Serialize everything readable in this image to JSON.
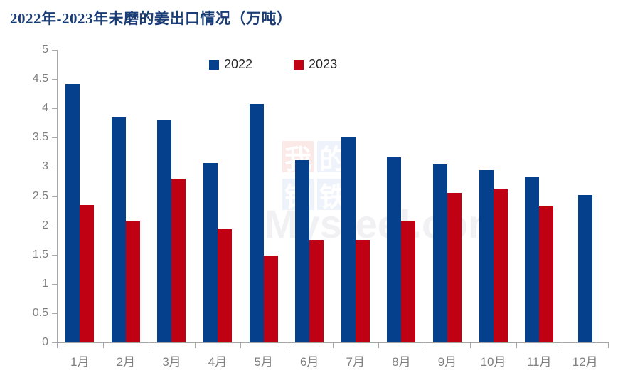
{
  "title": "2022年-2023年未磨的姜出口情况（万吨）",
  "legend": {
    "items": [
      {
        "label": "2022",
        "color": "#05408c"
      },
      {
        "label": "2023",
        "color": "#c00114"
      }
    ]
  },
  "watermark": {
    "squares": [
      {
        "char": "我",
        "bg": "#fbe9e7"
      },
      {
        "char": "的",
        "bg": "#eef2fa"
      },
      {
        "char": "钢",
        "bg": "#eef2fa"
      },
      {
        "char": "铁",
        "bg": "#eef2fa"
      }
    ],
    "text": "Mysteel.com"
  },
  "chart_data": {
    "type": "bar",
    "title": "2022年-2023年未磨的姜出口情况（万吨）",
    "categories": [
      "1月",
      "2月",
      "3月",
      "4月",
      "5月",
      "6月",
      "7月",
      "8月",
      "9月",
      "10月",
      "11月",
      "12月"
    ],
    "series": [
      {
        "name": "2022",
        "color": "#05408c",
        "values": [
          4.42,
          3.85,
          3.81,
          3.07,
          4.07,
          3.12,
          3.52,
          3.16,
          3.04,
          2.95,
          2.84,
          2.52
        ]
      },
      {
        "name": "2023",
        "color": "#c00114",
        "values": [
          2.35,
          2.07,
          2.8,
          1.93,
          1.49,
          1.75,
          1.75,
          2.08,
          2.55,
          2.61,
          2.33,
          null
        ]
      }
    ],
    "xlabel": "",
    "ylabel": "",
    "ylim": [
      0,
      5
    ],
    "ytick_step": 0.5,
    "ytick_labels": [
      "0",
      "0.5",
      "1",
      "1.5",
      "2",
      "2.5",
      "3",
      "3.5",
      "4",
      "4.5",
      "5"
    ],
    "grid": false,
    "legend_position": "top-center"
  }
}
